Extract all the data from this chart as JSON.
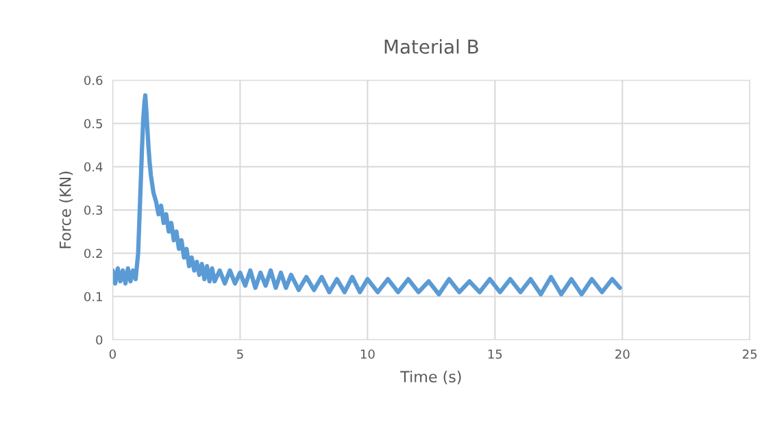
{
  "chart_data": {
    "type": "line",
    "title": "Material B",
    "xlabel": "Time (s)",
    "ylabel": "Force (KN)",
    "xlim": [
      0,
      25
    ],
    "xticks": [
      0,
      5,
      10,
      15,
      20,
      25
    ],
    "ylim": [
      0,
      0.6
    ],
    "yticks": [
      0,
      0.1,
      0.2,
      0.3,
      0.4,
      0.5,
      0.6
    ],
    "grid": true,
    "marker": "none",
    "line_style": "solid",
    "series": [
      {
        "color": "#5b9bd5",
        "x": [
          0,
          0.1,
          0.2,
          0.3,
          0.4,
          0.5,
          0.6,
          0.7,
          0.8,
          0.9,
          0.95,
          1.0,
          1.05,
          1.1,
          1.15,
          1.2,
          1.25,
          1.28,
          1.32,
          1.36,
          1.4,
          1.45,
          1.5,
          1.6,
          1.7,
          1.8,
          1.9,
          2.0,
          2.1,
          2.2,
          2.3,
          2.4,
          2.5,
          2.6,
          2.7,
          2.8,
          2.9,
          3.0,
          3.1,
          3.2,
          3.3,
          3.4,
          3.5,
          3.6,
          3.7,
          3.8,
          3.9,
          4.0,
          4.2,
          4.4,
          4.6,
          4.8,
          5.0,
          5.2,
          5.4,
          5.6,
          5.8,
          6.0,
          6.2,
          6.4,
          6.6,
          6.8,
          7.0,
          7.3,
          7.6,
          7.9,
          8.2,
          8.5,
          8.8,
          9.1,
          9.4,
          9.7,
          10.0,
          10.4,
          10.8,
          11.2,
          11.6,
          12.0,
          12.4,
          12.8,
          13.2,
          13.6,
          14.0,
          14.4,
          14.8,
          15.2,
          15.6,
          16.0,
          16.4,
          16.8,
          17.2,
          17.6,
          18.0,
          18.4,
          18.8,
          19.2,
          19.6,
          19.9
        ],
        "values": [
          0.16,
          0.13,
          0.165,
          0.135,
          0.16,
          0.13,
          0.165,
          0.135,
          0.16,
          0.14,
          0.17,
          0.2,
          0.28,
          0.36,
          0.44,
          0.51,
          0.55,
          0.565,
          0.53,
          0.49,
          0.45,
          0.41,
          0.38,
          0.34,
          0.32,
          0.29,
          0.31,
          0.27,
          0.29,
          0.25,
          0.27,
          0.23,
          0.25,
          0.21,
          0.23,
          0.19,
          0.21,
          0.17,
          0.19,
          0.16,
          0.18,
          0.15,
          0.175,
          0.14,
          0.17,
          0.135,
          0.165,
          0.135,
          0.16,
          0.13,
          0.16,
          0.13,
          0.155,
          0.125,
          0.16,
          0.12,
          0.155,
          0.125,
          0.16,
          0.12,
          0.155,
          0.12,
          0.15,
          0.115,
          0.145,
          0.115,
          0.145,
          0.11,
          0.14,
          0.11,
          0.145,
          0.11,
          0.14,
          0.11,
          0.14,
          0.11,
          0.14,
          0.11,
          0.135,
          0.105,
          0.14,
          0.11,
          0.135,
          0.11,
          0.14,
          0.11,
          0.14,
          0.11,
          0.14,
          0.105,
          0.145,
          0.105,
          0.14,
          0.105,
          0.14,
          0.11,
          0.14,
          0.12
        ]
      }
    ]
  }
}
